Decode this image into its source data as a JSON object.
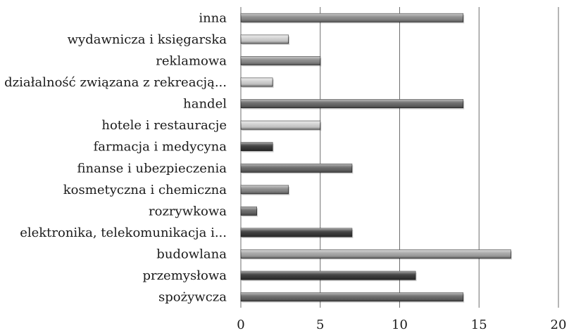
{
  "chart_data": {
    "type": "bar",
    "orientation": "horizontal",
    "title": "",
    "xlabel": "",
    "ylabel": "",
    "categories": [
      "inna",
      "wydawnicza i księgarska",
      "reklamowa",
      "działalność związana z rekreacją...",
      "handel",
      "hotele i restauracje",
      "farmacja i medycyna",
      "finanse i ubezpieczenia",
      "kosmetyczna i chemiczna",
      "rozrywkowa",
      "elektronika, telekomunikacja i...",
      "budowlana",
      "przemysłowa",
      "spożywcza"
    ],
    "values": [
      14,
      3,
      5,
      2,
      14,
      5,
      2,
      7,
      3,
      1,
      7,
      17,
      11,
      14
    ],
    "bar_colors": [
      "#8c8c8c",
      "#d2d2d2",
      "#8c8c8c",
      "#d2d2d2",
      "#6a6a6a",
      "#d2d2d2",
      "#3c3c3c",
      "#6a6a6a",
      "#8c8c8c",
      "#6a6a6a",
      "#3c3c3c",
      "#a8a8a8",
      "#3c3c3c",
      "#6a6a6a"
    ],
    "xlim": [
      0,
      20
    ],
    "x_ticks": [
      "0",
      "5",
      "10",
      "15",
      "20"
    ],
    "grid": true,
    "legend": "none"
  }
}
